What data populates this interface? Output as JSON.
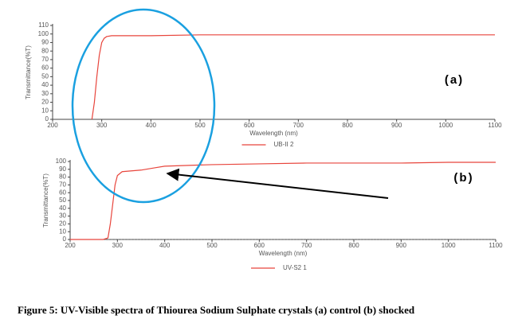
{
  "chart_data": [
    {
      "type": "line",
      "annotation": "(a)",
      "x_label": "Wavelength (nm)",
      "y_label": "Transmittance(%T)",
      "x": [
        280,
        285,
        290,
        295,
        300,
        305,
        310,
        320,
        330,
        400,
        500,
        600,
        700,
        800,
        900,
        1000,
        1100
      ],
      "series": [
        {
          "name": "UB-II 2",
          "color": "#e8453c",
          "values": [
            0,
            20,
            50,
            75,
            90,
            95,
            97,
            98,
            98,
            98,
            99,
            99,
            99,
            99,
            99,
            99,
            99
          ]
        }
      ],
      "xlim": [
        200,
        1100
      ],
      "xticks": [
        200,
        300,
        400,
        500,
        600,
        700,
        800,
        900,
        1000,
        1100
      ],
      "ylim": [
        0,
        110
      ],
      "yticks": [
        0,
        10,
        20,
        30,
        40,
        50,
        60,
        70,
        80,
        90,
        100,
        110
      ]
    },
    {
      "type": "line",
      "annotation": "(b)",
      "x_label": "Wavelength (nm)",
      "y_label": "Transmittance(%T)",
      "x": [
        200,
        270,
        280,
        285,
        290,
        295,
        300,
        310,
        330,
        350,
        380,
        400,
        500,
        600,
        700,
        800,
        900,
        1000,
        1100
      ],
      "series": [
        {
          "name": "UV-S2 1",
          "color": "#e8453c",
          "values": [
            0,
            0,
            2,
            20,
            45,
            70,
            82,
            87,
            88,
            89,
            92,
            94,
            96,
            97,
            98,
            98,
            98,
            99,
            99
          ]
        }
      ],
      "xlim": [
        200,
        1100
      ],
      "xticks": [
        200,
        300,
        400,
        500,
        600,
        700,
        800,
        900,
        1000,
        1100
      ],
      "ylim": [
        0,
        100
      ],
      "yticks": [
        0,
        10,
        20,
        30,
        40,
        50,
        60,
        70,
        80,
        90,
        100
      ],
      "zero_line": "dotted"
    }
  ],
  "caption": "Figure 5: UV-Visible spectra of Thiourea Sodium Sulphate crystals (a) control (b) shocked"
}
